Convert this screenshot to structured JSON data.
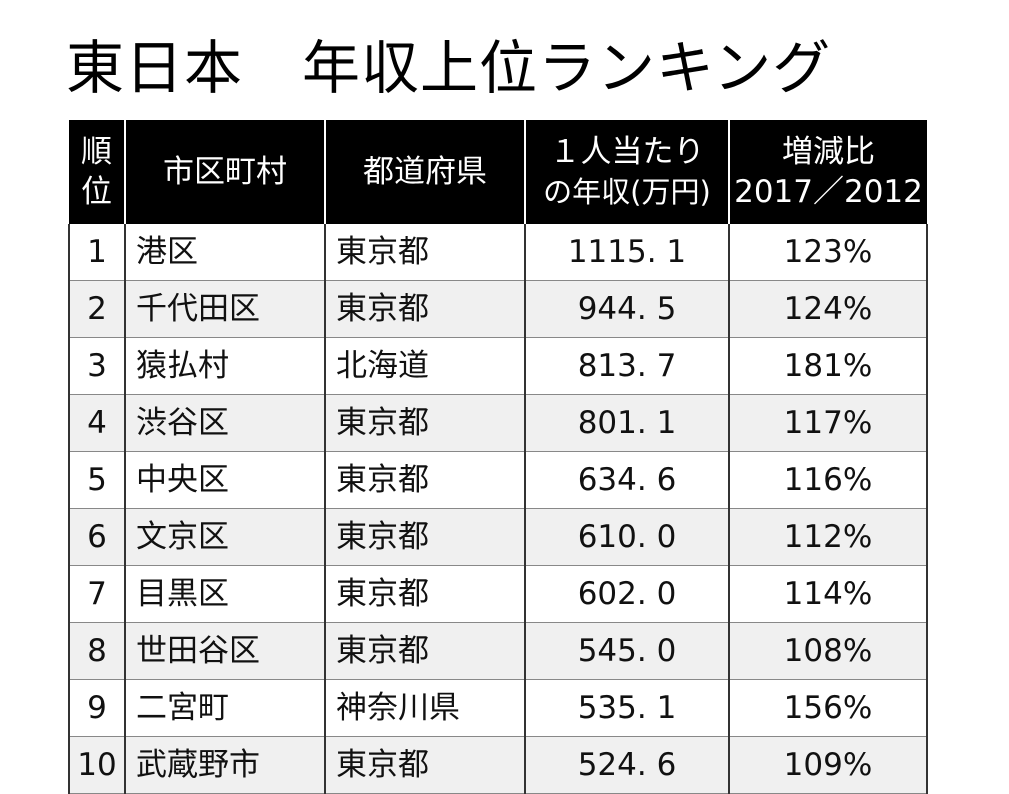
{
  "title": "東日本　年収上位ランキング",
  "headers": {
    "rank": [
      "順",
      "位"
    ],
    "city": "市区町村",
    "prefecture": "都道府県",
    "income": [
      "１人当たり",
      "の年収(万円)"
    ],
    "ratio": [
      "増減比",
      "2017／2012"
    ]
  },
  "rows": [
    {
      "rank": "1",
      "city": "港区",
      "prefecture": "東京都",
      "income": "1115. 1",
      "ratio": "123%"
    },
    {
      "rank": "2",
      "city": "千代田区",
      "prefecture": "東京都",
      "income": "944. 5",
      "ratio": "124%"
    },
    {
      "rank": "3",
      "city": "猿払村",
      "prefecture": "北海道",
      "income": "813. 7",
      "ratio": "181%"
    },
    {
      "rank": "4",
      "city": "渋谷区",
      "prefecture": "東京都",
      "income": "801. 1",
      "ratio": "117%"
    },
    {
      "rank": "5",
      "city": "中央区",
      "prefecture": "東京都",
      "income": "634. 6",
      "ratio": "116%"
    },
    {
      "rank": "6",
      "city": "文京区",
      "prefecture": "東京都",
      "income": "610. 0",
      "ratio": "112%"
    },
    {
      "rank": "7",
      "city": "目黒区",
      "prefecture": "東京都",
      "income": "602. 0",
      "ratio": "114%"
    },
    {
      "rank": "8",
      "city": "世田谷区",
      "prefecture": "東京都",
      "income": "545. 0",
      "ratio": "108%"
    },
    {
      "rank": "9",
      "city": "二宮町",
      "prefecture": "神奈川県",
      "income": "535. 1",
      "ratio": "156%"
    },
    {
      "rank": "10",
      "city": "武蔵野市",
      "prefecture": "東京都",
      "income": "524. 6",
      "ratio": "109%"
    }
  ]
}
